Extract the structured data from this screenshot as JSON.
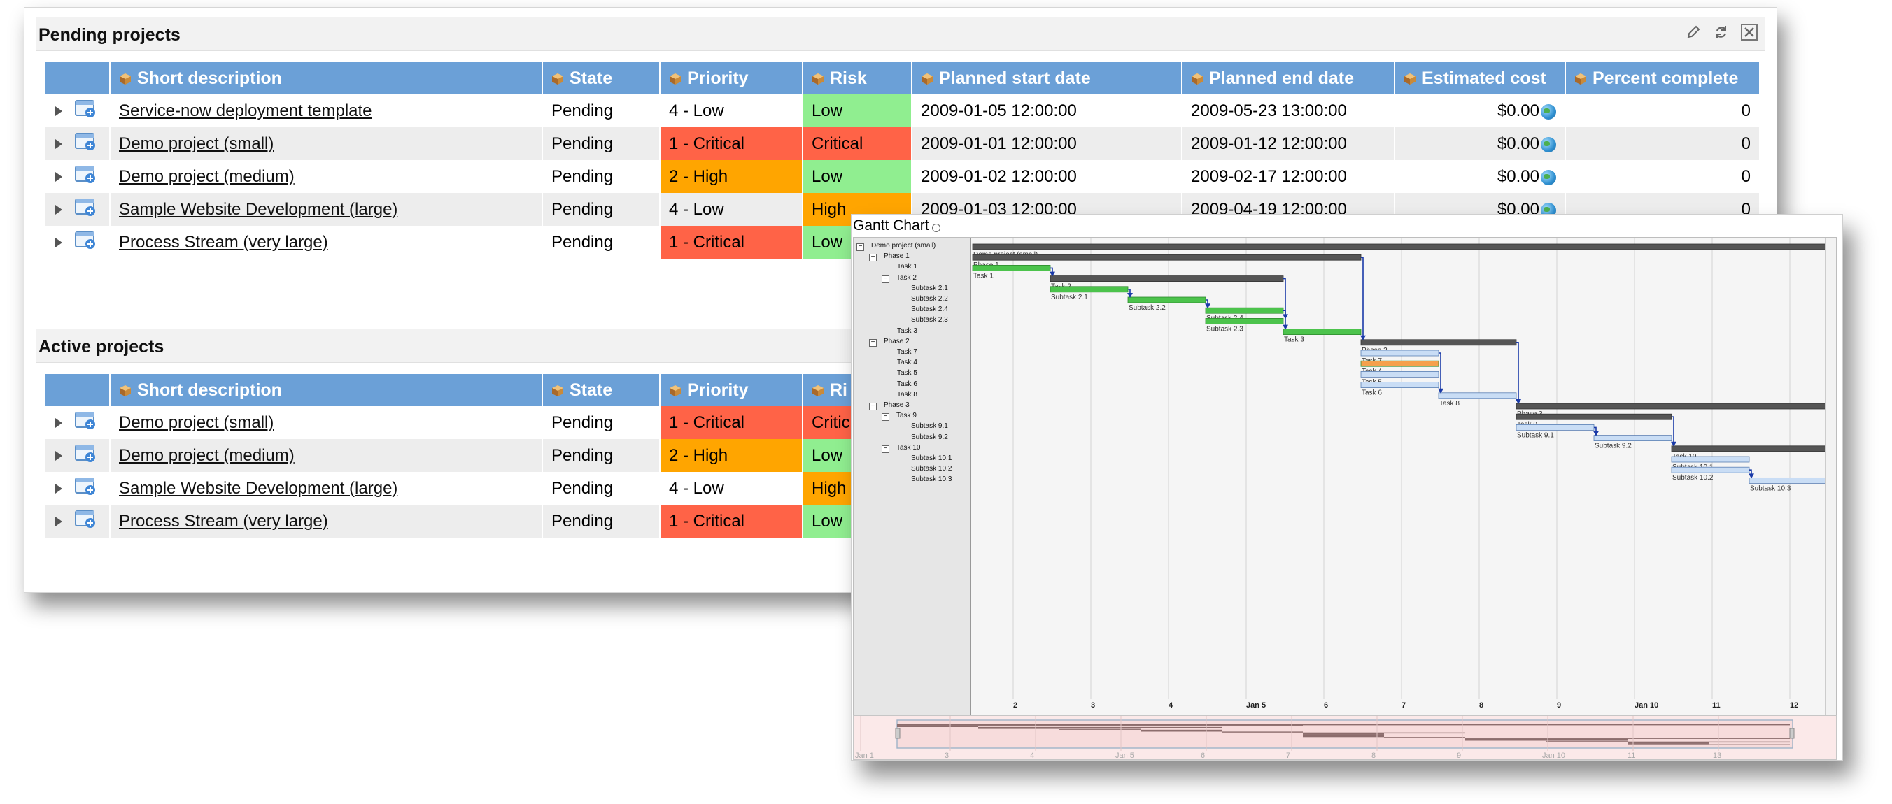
{
  "pending": {
    "title": "Pending projects",
    "columns": [
      "Short description",
      "State",
      "Priority",
      "Risk",
      "Planned start date",
      "Planned end date",
      "Estimated cost",
      "Percent complete"
    ],
    "rows": [
      {
        "desc": "Service-now deployment template",
        "state": "Pending",
        "priority": "4 - Low",
        "priority_color": "#ffffff",
        "risk": "Low",
        "risk_color": "#90ee90",
        "start": "2009-01-05 12:00:00",
        "end": "2009-05-23 13:00:00",
        "cost": "$0.00",
        "pct": "0"
      },
      {
        "desc": "Demo project (small)",
        "state": "Pending",
        "priority": "1 - Critical",
        "priority_color": "#ff6347",
        "risk": "Critical",
        "risk_color": "#ff6347",
        "start": "2009-01-01 12:00:00",
        "end": "2009-01-12 12:00:00",
        "cost": "$0.00",
        "pct": "0"
      },
      {
        "desc": "Demo project (medium)",
        "state": "Pending",
        "priority": "2 - High",
        "priority_color": "#ffa500",
        "risk": "Low",
        "risk_color": "#90ee90",
        "start": "2009-01-02 12:00:00",
        "end": "2009-02-17 12:00:00",
        "cost": "$0.00",
        "pct": "0"
      },
      {
        "desc": "Sample Website Development (large)",
        "state": "Pending",
        "priority": "4 - Low",
        "priority_color": "#ededed",
        "risk": "High",
        "risk_color": "#ffa500",
        "start": "2009-01-03 12:00:00",
        "end": "2009-04-19 12:00:00",
        "cost": "$0.00",
        "pct": "0"
      },
      {
        "desc": "Process Stream (very large)",
        "state": "Pending",
        "priority": "1 - Critical",
        "priority_color": "#ff6347",
        "risk": "Low",
        "risk_color": "#90ee90",
        "start": "",
        "end": "",
        "cost": "",
        "pct": ""
      }
    ]
  },
  "active": {
    "title": "Active projects",
    "columns": [
      "Short description",
      "State",
      "Priority",
      "Ri"
    ],
    "rows": [
      {
        "desc": "Demo project (small)",
        "state": "Pending",
        "priority": "1 - Critical",
        "priority_color": "#ff6347",
        "risk": "Critic",
        "risk_color": "#ff6347"
      },
      {
        "desc": "Demo project (medium)",
        "state": "Pending",
        "priority": "2 - High",
        "priority_color": "#ffa500",
        "risk": "Low",
        "risk_color": "#90ee90"
      },
      {
        "desc": "Sample Website Development (large)",
        "state": "Pending",
        "priority": "4 - Low",
        "priority_color": "#ffffff",
        "risk": "High",
        "risk_color": "#ffa500"
      },
      {
        "desc": "Process Stream (very large)",
        "state": "Pending",
        "priority": "1 - Critical",
        "priority_color": "#ff6347",
        "risk": "Low",
        "risk_color": "#90ee90"
      }
    ]
  },
  "tools": {
    "icons": [
      "pencil-icon",
      "refresh-icon",
      "close-icon"
    ]
  },
  "gantt": {
    "title": "Gantt Chart",
    "tree": [
      {
        "label": "Demo project (small)",
        "level": 0,
        "toggle": "−"
      },
      {
        "label": "Phase 1",
        "level": 1,
        "toggle": "−"
      },
      {
        "label": "Task 1",
        "level": 2,
        "toggle": ""
      },
      {
        "label": "Task 2",
        "level": 2,
        "toggle": "−"
      },
      {
        "label": "Subtask 2.1",
        "level": 3,
        "toggle": ""
      },
      {
        "label": "Subtask 2.2",
        "level": 3,
        "toggle": ""
      },
      {
        "label": "Subtask 2.4",
        "level": 3,
        "toggle": ""
      },
      {
        "label": "Subtask 2.3",
        "level": 3,
        "toggle": ""
      },
      {
        "label": "Task 3",
        "level": 2,
        "toggle": ""
      },
      {
        "label": "Phase 2",
        "level": 1,
        "toggle": "−"
      },
      {
        "label": "Task 7",
        "level": 2,
        "toggle": ""
      },
      {
        "label": "Task 4",
        "level": 2,
        "toggle": ""
      },
      {
        "label": "Task 5",
        "level": 2,
        "toggle": ""
      },
      {
        "label": "Task 6",
        "level": 2,
        "toggle": ""
      },
      {
        "label": "Task 8",
        "level": 2,
        "toggle": ""
      },
      {
        "label": "Phase 3",
        "level": 1,
        "toggle": "−"
      },
      {
        "label": "Task 9",
        "level": 2,
        "toggle": "−"
      },
      {
        "label": "Subtask 9.1",
        "level": 3,
        "toggle": ""
      },
      {
        "label": "Subtask 9.2",
        "level": 3,
        "toggle": ""
      },
      {
        "label": "Task 10",
        "level": 2,
        "toggle": "−"
      },
      {
        "label": "Subtask 10.1",
        "level": 3,
        "toggle": ""
      },
      {
        "label": "Subtask 10.2",
        "level": 3,
        "toggle": ""
      },
      {
        "label": "Subtask 10.3",
        "level": 3,
        "toggle": ""
      }
    ],
    "axis_ticks": [
      "2",
      "3",
      "4",
      "Jan 5",
      "6",
      "7",
      "8",
      "9",
      "Jan 10",
      "11",
      "12"
    ],
    "overview_ticks": [
      "Jan 1",
      "3",
      "4",
      "Jan 5",
      "6",
      "7",
      "8",
      "9",
      "Jan 10",
      "11",
      "13"
    ],
    "bars": [
      {
        "row": 0,
        "start": 0.0,
        "end": 11.0,
        "kind": "summary",
        "label": "Demo project (small)"
      },
      {
        "row": 1,
        "start": 0.0,
        "end": 5.0,
        "kind": "summary",
        "label": "Phase 1"
      },
      {
        "row": 2,
        "start": 0.0,
        "end": 1.0,
        "kind": "task",
        "label": "Task 1"
      },
      {
        "row": 3,
        "start": 1.0,
        "end": 4.0,
        "kind": "summary",
        "label": "Task 2"
      },
      {
        "row": 4,
        "start": 1.0,
        "end": 2.0,
        "kind": "task",
        "label": "Subtask 2.1"
      },
      {
        "row": 5,
        "start": 2.0,
        "end": 3.0,
        "kind": "task",
        "label": "Subtask 2.2"
      },
      {
        "row": 6,
        "start": 3.0,
        "end": 4.0,
        "kind": "task",
        "label": "Subtask 2.4"
      },
      {
        "row": 7,
        "start": 3.0,
        "end": 4.0,
        "kind": "task",
        "label": "Subtask 2.3"
      },
      {
        "row": 8,
        "start": 4.0,
        "end": 5.0,
        "kind": "task",
        "label": "Task 3"
      },
      {
        "row": 9,
        "start": 5.0,
        "end": 7.0,
        "kind": "summary",
        "label": "Phase 2"
      },
      {
        "row": 10,
        "start": 5.0,
        "end": 6.0,
        "kind": "pending",
        "label": "Task 7"
      },
      {
        "row": 11,
        "start": 5.0,
        "end": 6.0,
        "kind": "orange",
        "label": "Task 4"
      },
      {
        "row": 12,
        "start": 5.0,
        "end": 6.0,
        "kind": "pending",
        "label": "Task 5"
      },
      {
        "row": 13,
        "start": 5.0,
        "end": 6.0,
        "kind": "pending",
        "label": "Task 6"
      },
      {
        "row": 14,
        "start": 6.0,
        "end": 7.0,
        "kind": "pending",
        "label": "Task 8"
      },
      {
        "row": 15,
        "start": 7.0,
        "end": 11.0,
        "kind": "summary",
        "label": "Phase 3"
      },
      {
        "row": 16,
        "start": 7.0,
        "end": 9.0,
        "kind": "summary",
        "label": "Task 9"
      },
      {
        "row": 17,
        "start": 7.0,
        "end": 8.0,
        "kind": "pending",
        "label": "Subtask 9.1"
      },
      {
        "row": 18,
        "start": 8.0,
        "end": 9.0,
        "kind": "pending",
        "label": "Subtask 9.2"
      },
      {
        "row": 19,
        "start": 9.0,
        "end": 11.0,
        "kind": "summary",
        "label": "Task 10"
      },
      {
        "row": 20,
        "start": 9.0,
        "end": 10.0,
        "kind": "pending",
        "label": "Subtask 10.1"
      },
      {
        "row": 21,
        "start": 9.0,
        "end": 10.0,
        "kind": "pending",
        "label": "Subtask 10.2"
      },
      {
        "row": 22,
        "start": 10.0,
        "end": 11.0,
        "kind": "pending",
        "label": "Subtask 10.3"
      }
    ],
    "links": [
      [
        2,
        3
      ],
      [
        4,
        5
      ],
      [
        5,
        6
      ],
      [
        6,
        7
      ],
      [
        3,
        8
      ],
      [
        1,
        9
      ],
      [
        10,
        14
      ],
      [
        9,
        15
      ],
      [
        17,
        18
      ],
      [
        16,
        19
      ],
      [
        21,
        22
      ]
    ],
    "colors": {
      "summary": "#555555",
      "task": "#4cc34c",
      "pending": "#c9ddf5",
      "orange": "#f5a04c",
      "link": "#1a3aa8"
    }
  }
}
